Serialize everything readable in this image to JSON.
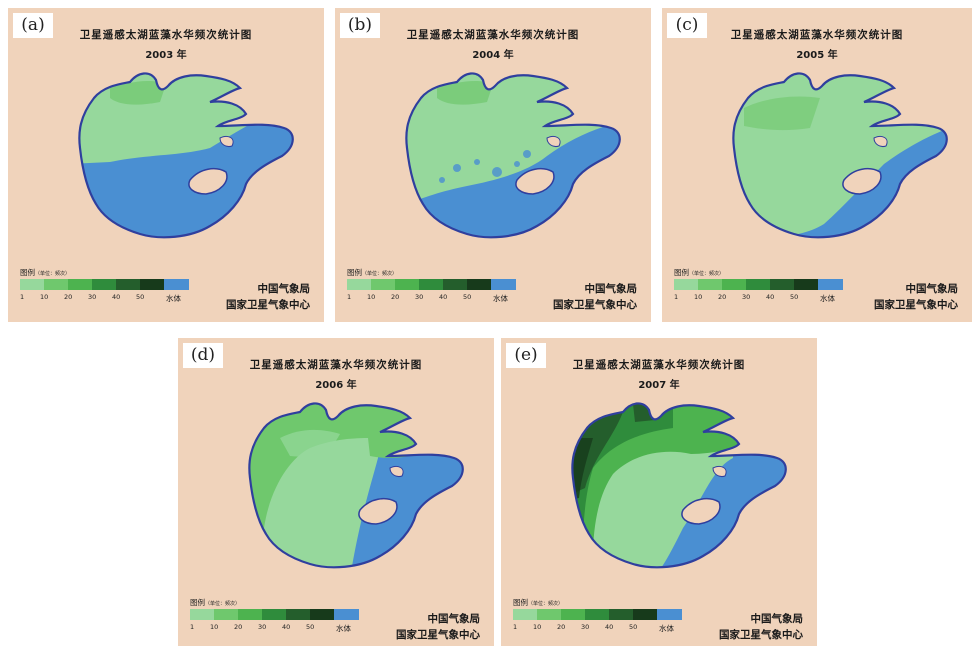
{
  "colors": {
    "background": "#f0d3bb",
    "water": "#4a8fd2",
    "shore": "#2f3f9e",
    "scale": [
      "#96d89c",
      "#6fc86d",
      "#4db34f",
      "#2f8c3c",
      "#245e2c",
      "#173a1b"
    ]
  },
  "legend": {
    "title": "图例",
    "unit": "（单位：频次）",
    "ticks": [
      "1",
      "10",
      "20",
      "30",
      "40",
      "50"
    ],
    "water_label": "水体"
  },
  "agency": {
    "line1": "中国气象局",
    "line2": "国家卫星气象中心"
  },
  "map_title": "卫星遥感太湖蓝藻水华频次统计图",
  "panels": [
    {
      "label": "(a)",
      "year": "2003 年"
    },
    {
      "label": "(b)",
      "year": "2004 年"
    },
    {
      "label": "(c)",
      "year": "2005 年"
    },
    {
      "label": "(d)",
      "year": "2006 年"
    },
    {
      "label": "(e)",
      "year": "2007 年"
    }
  ]
}
